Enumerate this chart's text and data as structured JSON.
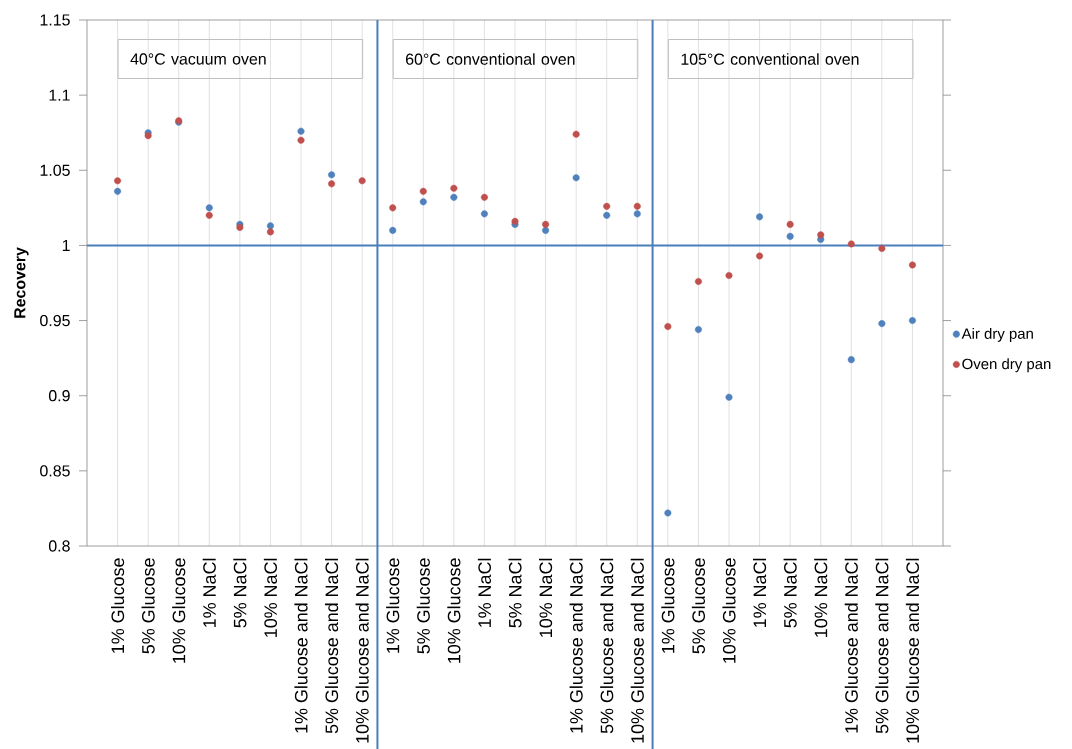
{
  "chart_data": {
    "type": "scatter",
    "ylabel": "Recovery",
    "categories": [
      "1% Glucose",
      "5% Glucose",
      "10% Glucose",
      "1% NaCl",
      "5% NaCl",
      "10% NaCl",
      "1% Glucose and NaCl",
      "5% Glucose and NaCl",
      "10% Glucose and NaCl",
      "1% Glucose",
      "5% Glucose",
      "10% Glucose",
      "1% NaCl",
      "5% NaCl",
      "10% NaCl",
      "1% Glucose and NaCl",
      "5% Glucose and NaCl",
      "10% Glucose and NaCl",
      "1% Glucose",
      "5% Glucose",
      "10% Glucose",
      "1% NaCl",
      "5% NaCl",
      "10% NaCl",
      "1% Glucose and NaCl",
      "5% Glucose and NaCl",
      "10% Glucose and NaCl"
    ],
    "series": [
      {
        "name": "Air dry pan",
        "color": "#4f81bd",
        "values": [
          1.036,
          1.075,
          1.082,
          1.025,
          1.014,
          1.013,
          1.076,
          1.047,
          null,
          1.01,
          1.029,
          1.032,
          1.021,
          1.014,
          1.01,
          1.045,
          1.02,
          1.021,
          0.822,
          0.944,
          0.899,
          1.019,
          1.006,
          1.004,
          0.924,
          0.948,
          0.95
        ]
      },
      {
        "name": "Oven dry pan",
        "color": "#c0504d",
        "values": [
          1.043,
          1.073,
          1.083,
          1.02,
          1.012,
          1.009,
          1.07,
          1.041,
          1.043,
          1.025,
          1.036,
          1.038,
          1.032,
          1.016,
          1.014,
          1.074,
          1.026,
          1.026,
          0.946,
          0.976,
          0.98,
          0.993,
          1.014,
          1.007,
          1.001,
          0.998,
          0.987
        ]
      }
    ],
    "ylim": [
      0.8,
      1.15
    ],
    "yticks": [
      0.8,
      0.85,
      0.9,
      0.95,
      1,
      1.05,
      1.1,
      1.15
    ],
    "grid": "x",
    "legend": "right",
    "marker": "circle",
    "ref_lines": [
      {
        "axis": "y",
        "value": 1,
        "color": "#4a7ebb"
      }
    ],
    "annotations": [
      "40°C vacuum oven",
      "60°C conventional oven",
      "105°C conventional oven"
    ]
  }
}
